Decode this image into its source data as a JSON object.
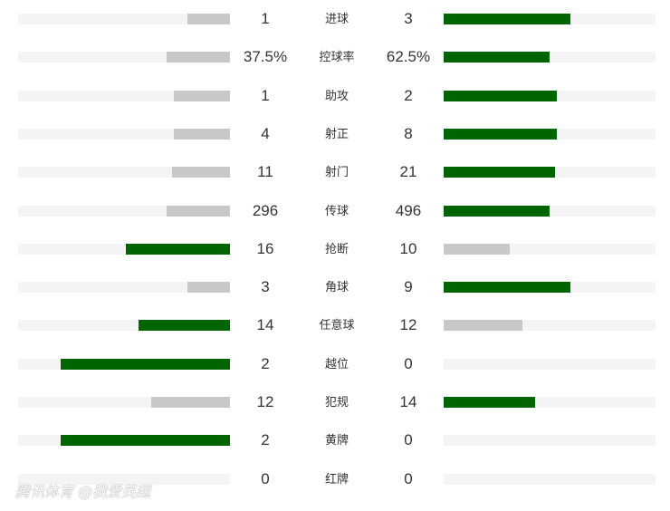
{
  "colors": {
    "home_lead": "#006400",
    "lose": "#c8c8c8",
    "track": "#f4f4f4"
  },
  "stats": [
    {
      "label": "进球",
      "left": "1",
      "right": "3",
      "left_fill": 0.2,
      "right_fill": 0.6,
      "left_win": false,
      "right_win": true
    },
    {
      "label": "控球率",
      "left": "37.5%",
      "right": "62.5%",
      "left_fill": 0.3,
      "right_fill": 0.5,
      "left_win": false,
      "right_win": true
    },
    {
      "label": "助攻",
      "left": "1",
      "right": "2",
      "left_fill": 0.265,
      "right_fill": 0.535,
      "left_win": false,
      "right_win": true
    },
    {
      "label": "射正",
      "left": "4",
      "right": "8",
      "left_fill": 0.265,
      "right_fill": 0.535,
      "left_win": false,
      "right_win": true
    },
    {
      "label": "射门",
      "left": "11",
      "right": "21",
      "left_fill": 0.275,
      "right_fill": 0.525,
      "left_win": false,
      "right_win": true
    },
    {
      "label": "传球",
      "left": "296",
      "right": "496",
      "left_fill": 0.3,
      "right_fill": 0.5,
      "left_win": false,
      "right_win": true
    },
    {
      "label": "抢断",
      "left": "16",
      "right": "10",
      "left_fill": 0.49,
      "right_fill": 0.31,
      "left_win": true,
      "right_win": false
    },
    {
      "label": "角球",
      "left": "3",
      "right": "9",
      "left_fill": 0.2,
      "right_fill": 0.6,
      "left_win": false,
      "right_win": true
    },
    {
      "label": "任意球",
      "left": "14",
      "right": "12",
      "left_fill": 0.43,
      "right_fill": 0.37,
      "left_win": true,
      "right_win": false
    },
    {
      "label": "越位",
      "left": "2",
      "right": "0",
      "left_fill": 0.8,
      "right_fill": 0,
      "left_win": true,
      "right_win": false
    },
    {
      "label": "犯规",
      "left": "12",
      "right": "14",
      "left_fill": 0.37,
      "right_fill": 0.43,
      "left_win": false,
      "right_win": true
    },
    {
      "label": "黄牌",
      "left": "2",
      "right": "0",
      "left_fill": 0.8,
      "right_fill": 0,
      "left_win": true,
      "right_win": false
    },
    {
      "label": "红牌",
      "left": "0",
      "right": "0",
      "left_fill": 0,
      "right_fill": 0,
      "left_win": false,
      "right_win": false
    }
  ],
  "watermark": "腾讯体育 @我爱英超"
}
